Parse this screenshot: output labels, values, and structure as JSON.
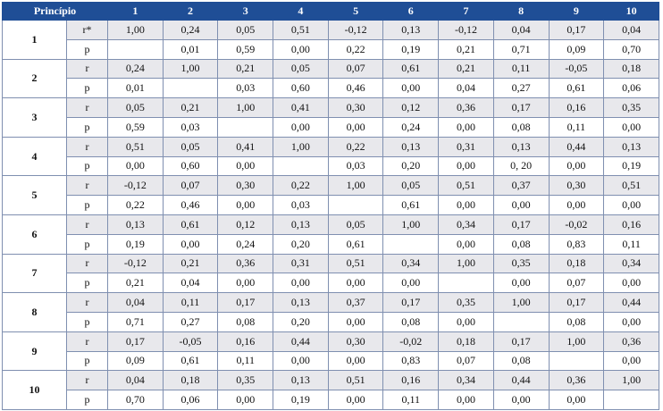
{
  "header": {
    "label": "Princípio",
    "columns": [
      "1",
      "2",
      "3",
      "4",
      "5",
      "6",
      "7",
      "8",
      "9",
      "10"
    ]
  },
  "rows": [
    {
      "principle": "1",
      "stats": [
        {
          "label": "r*",
          "values": [
            "1,00",
            "0,24",
            "0,05",
            "0,51",
            "-0,12",
            "0,13",
            "-0,12",
            "0,04",
            "0,17",
            "0,04"
          ]
        },
        {
          "label": "p",
          "values": [
            null,
            "0,01",
            "0,59",
            "0,00",
            "0,22",
            "0,19",
            "0,21",
            "0,71",
            "0,09",
            "0,70"
          ]
        }
      ]
    },
    {
      "principle": "2",
      "stats": [
        {
          "label": "r",
          "values": [
            "0,24",
            "1,00",
            "0,21",
            "0,05",
            "0,07",
            "0,61",
            "0,21",
            "0,11",
            "-0,05",
            "0,18"
          ]
        },
        {
          "label": "p",
          "values": [
            "0,01",
            null,
            "0,03",
            "0,60",
            "0,46",
            "0,00",
            "0,04",
            "0,27",
            "0,61",
            "0,06"
          ]
        }
      ]
    },
    {
      "principle": "3",
      "stats": [
        {
          "label": "r",
          "values": [
            "0,05",
            "0,21",
            "1,00",
            "0,41",
            "0,30",
            "0,12",
            "0,36",
            "0,17",
            "0,16",
            "0,35"
          ]
        },
        {
          "label": "p",
          "values": [
            "0,59",
            "0,03",
            null,
            "0,00",
            "0,00",
            "0,24",
            "0,00",
            "0,08",
            "0,11",
            "0,00"
          ]
        }
      ]
    },
    {
      "principle": "4",
      "stats": [
        {
          "label": "r",
          "values": [
            "0,51",
            "0,05",
            "0,41",
            "1,00",
            "0,22",
            "0,13",
            "0,31",
            "0,13",
            "0,44",
            "0,13"
          ]
        },
        {
          "label": "p",
          "values": [
            "0,00",
            "0,60",
            "0,00",
            null,
            "0,03",
            "0,20",
            "0,00",
            "0, 20",
            "0,00",
            "0,19"
          ]
        }
      ]
    },
    {
      "principle": "5",
      "stats": [
        {
          "label": "r",
          "values": [
            "-0,12",
            "0,07",
            "0,30",
            "0,22",
            "1,00",
            "0,05",
            "0,51",
            "0,37",
            "0,30",
            "0,51"
          ]
        },
        {
          "label": "p",
          "values": [
            "0,22",
            "0,46",
            "0,00",
            "0,03",
            null,
            "0,61",
            "0,00",
            "0,00",
            "0,00",
            "0,00"
          ]
        }
      ]
    },
    {
      "principle": "6",
      "stats": [
        {
          "label": "r",
          "values": [
            "0,13",
            "0,61",
            "0,12",
            "0,13",
            "0,05",
            "1,00",
            "0,34",
            "0,17",
            "-0,02",
            "0,16"
          ]
        },
        {
          "label": "p",
          "values": [
            "0,19",
            "0,00",
            "0,24",
            "0,20",
            "0,61",
            null,
            "0,00",
            "0,08",
            "0,83",
            "0,11"
          ]
        }
      ]
    },
    {
      "principle": "7",
      "stats": [
        {
          "label": "r",
          "values": [
            "-0,12",
            "0,21",
            "0,36",
            "0,31",
            "0,51",
            "0,34",
            "1,00",
            "0,35",
            "0,18",
            "0,34"
          ]
        },
        {
          "label": "p",
          "values": [
            "0,21",
            "0,04",
            "0,00",
            "0,00",
            "0,00",
            "0,00",
            null,
            "0,00",
            "0,07",
            "0,00"
          ]
        }
      ]
    },
    {
      "principle": "8",
      "stats": [
        {
          "label": "r",
          "values": [
            "0,04",
            "0,11",
            "0,17",
            "0,13",
            "0,37",
            "0,17",
            "0,35",
            "1,00",
            "0,17",
            "0,44"
          ]
        },
        {
          "label": "p",
          "values": [
            "0,71",
            "0,27",
            "0,08",
            "0,20",
            "0,00",
            "0,08",
            "0,00",
            null,
            "0,08",
            "0,00"
          ]
        }
      ]
    },
    {
      "principle": "9",
      "stats": [
        {
          "label": "r",
          "values": [
            "0,17",
            "-0,05",
            "0,16",
            "0,44",
            "0,30",
            "-0,02",
            "0,18",
            "0,17",
            "1,00",
            "0,36"
          ]
        },
        {
          "label": "p",
          "values": [
            "0,09",
            "0,61",
            "0,11",
            "0,00",
            "0,00",
            "0,83",
            "0,07",
            "0,08",
            null,
            "0,00"
          ]
        }
      ]
    },
    {
      "principle": "10",
      "stats": [
        {
          "label": "r",
          "values": [
            "0,04",
            "0,18",
            "0,35",
            "0,13",
            "0,51",
            "0,16",
            "0,34",
            "0,44",
            "0,36",
            "1,00"
          ]
        },
        {
          "label": "p",
          "values": [
            "0,70",
            "0,06",
            "0,00",
            "0,19",
            "0,00",
            "0,11",
            "0,00",
            "0,00",
            "0,00",
            null
          ]
        }
      ]
    }
  ]
}
